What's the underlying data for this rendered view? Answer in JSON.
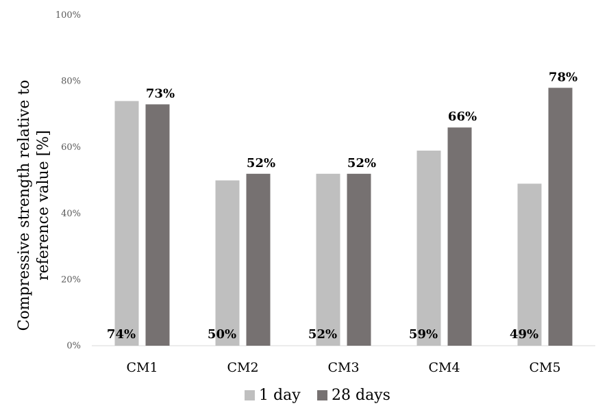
{
  "chart_data": {
    "type": "bar",
    "categories": [
      "CM1",
      "CM2",
      "CM3",
      "CM4",
      "CM5"
    ],
    "series": [
      {
        "name": "1 day",
        "values": [
          74,
          50,
          52,
          59,
          49
        ],
        "color": "#bfbfbf",
        "labels": [
          "74%",
          "50%",
          "52%",
          "59%",
          "49%"
        ]
      },
      {
        "name": "28 days",
        "values": [
          73,
          52,
          52,
          66,
          78
        ],
        "color": "#767171",
        "labels": [
          "73%",
          "52%",
          "52%",
          "66%",
          "78%"
        ]
      }
    ],
    "ylabel_lines": [
      "Compressive strength relative to",
      "reference value [%]"
    ],
    "xlabel": "",
    "ylim": [
      0,
      100
    ],
    "yticks": [
      "0%",
      "20%",
      "40%",
      "60%",
      "80%",
      "100%"
    ],
    "ytick_values": [
      0,
      20,
      40,
      60,
      80,
      100
    ],
    "grid": false,
    "legend_position": "bottom"
  }
}
